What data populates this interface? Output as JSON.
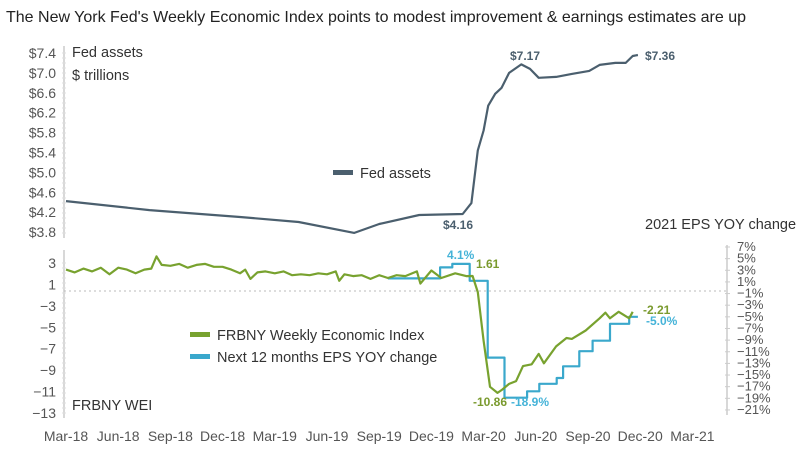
{
  "chart_data": [
    {
      "type": "line",
      "title": "The New York Fed's Weekly Economic Index points to modest improvement & earnings estimates are up",
      "ylabel": "Fed assets",
      "yunits": "$ trillions",
      "ylim": [
        3.8,
        7.4
      ],
      "yticks": [
        "$7.4",
        "$7.0",
        "$6.6",
        "$6.2",
        "$5.8",
        "$5.4",
        "$5.0",
        "$4.6",
        "$4.2",
        "$3.8"
      ],
      "legend": "center",
      "series": [
        {
          "name": "Fed assets",
          "color": "#4b5f6e",
          "points": [
            [
              "2018-03-01",
              4.42
            ],
            [
              "2018-07-25",
              4.24
            ],
            [
              "2019-01-01",
              4.1
            ],
            [
              "2019-04-12",
              4.0
            ],
            [
              "2019-07-18",
              3.78
            ],
            [
              "2019-09-01",
              3.96
            ],
            [
              "2019-11-10",
              4.14
            ],
            [
              "2020-01-25",
              4.16
            ],
            [
              "2020-02-10",
              4.38
            ],
            [
              "2020-02-21",
              5.44
            ],
            [
              "2020-03-01",
              5.84
            ],
            [
              "2020-03-09",
              6.34
            ],
            [
              "2020-03-21",
              6.58
            ],
            [
              "2020-04-02",
              6.7
            ],
            [
              "2020-04-15",
              7.0
            ],
            [
              "2020-05-06",
              7.17
            ],
            [
              "2020-05-21",
              7.08
            ],
            [
              "2020-06-06",
              6.9
            ],
            [
              "2020-07-06",
              6.92
            ],
            [
              "2020-08-03",
              6.98
            ],
            [
              "2020-09-03",
              7.04
            ],
            [
              "2020-09-21",
              7.16
            ],
            [
              "2020-10-18",
              7.2
            ],
            [
              "2020-11-06",
              7.2
            ],
            [
              "2020-11-18",
              7.34
            ],
            [
              "2020-11-27",
              7.36
            ]
          ]
        }
      ],
      "annotations": [
        {
          "text": "$4.16",
          "series": "Fed assets"
        },
        {
          "text": "$7.17",
          "series": "Fed assets"
        },
        {
          "text": "$7.36",
          "series": "Fed assets"
        }
      ]
    },
    {
      "type": "line",
      "ylabel_left": "FRBNY WEI",
      "ylabel_right": "2021 EPS YOY change",
      "ylim_left": [
        -13,
        3
      ],
      "ylim_right": [
        -21,
        7
      ],
      "yticks_left": [
        "3",
        "1",
        "−3",
        "−5",
        "−7",
        "−9",
        "−11",
        "−13"
      ],
      "yticks_right": [
        "7%",
        "5%",
        "3%",
        "1%",
        "−1%",
        "−3%",
        "−5%",
        "−7%",
        "−9%",
        "−11%",
        "−13%",
        "−15%",
        "−17%",
        "−19%",
        "−21%"
      ],
      "xticks": [
        "Mar-18",
        "Jun-18",
        "Sep-18",
        "Dec-18",
        "Mar-19",
        "Jun-19",
        "Sep-19",
        "Dec-19",
        "Mar-20",
        "Jun-20",
        "Sep-20",
        "Dec-20",
        "Mar-21"
      ],
      "zero_line": "dotted",
      "legend": "center-left",
      "series": [
        {
          "name": "FRBNY Weekly Economic Index",
          "axis": "left",
          "color": "#78a22f",
          "points": [
            [
              "2018-03-01",
              2.3
            ],
            [
              "2018-03-16",
              2.0
            ],
            [
              "2018-04-01",
              2.4
            ],
            [
              "2018-04-16",
              2.1
            ],
            [
              "2018-05-01",
              2.5
            ],
            [
              "2018-05-16",
              1.8
            ],
            [
              "2018-06-01",
              2.5
            ],
            [
              "2018-06-16",
              2.3
            ],
            [
              "2018-07-01",
              1.9
            ],
            [
              "2018-07-16",
              2.3
            ],
            [
              "2018-07-28",
              2.4
            ],
            [
              "2018-08-07",
              3.7
            ],
            [
              "2018-08-16",
              2.8
            ],
            [
              "2018-09-01",
              2.7
            ],
            [
              "2018-09-16",
              2.9
            ],
            [
              "2018-10-01",
              2.5
            ],
            [
              "2018-10-16",
              2.8
            ],
            [
              "2018-11-01",
              2.9
            ],
            [
              "2018-11-16",
              2.6
            ],
            [
              "2018-12-01",
              2.6
            ],
            [
              "2018-12-16",
              2.3
            ],
            [
              "2019-01-01",
              1.9
            ],
            [
              "2019-01-10",
              2.3
            ],
            [
              "2019-01-19",
              1.3
            ],
            [
              "2019-02-01",
              2.0
            ],
            [
              "2019-02-15",
              2.1
            ],
            [
              "2019-03-01",
              1.9
            ],
            [
              "2019-03-16",
              2.1
            ],
            [
              "2019-04-01",
              1.7
            ],
            [
              "2019-04-16",
              1.8
            ],
            [
              "2019-05-01",
              1.7
            ],
            [
              "2019-05-16",
              1.9
            ],
            [
              "2019-06-01",
              1.8
            ],
            [
              "2019-06-16",
              2.1
            ],
            [
              "2019-06-22",
              1.1
            ],
            [
              "2019-07-01",
              1.8
            ],
            [
              "2019-07-16",
              1.6
            ],
            [
              "2019-08-01",
              1.7
            ],
            [
              "2019-08-16",
              1.3
            ],
            [
              "2019-09-01",
              1.7
            ],
            [
              "2019-09-16",
              1.4
            ],
            [
              "2019-10-01",
              1.7
            ],
            [
              "2019-10-16",
              1.6
            ],
            [
              "2019-11-06",
              2.1
            ],
            [
              "2019-11-12",
              0.8
            ],
            [
              "2019-12-01",
              2.2
            ],
            [
              "2019-12-18",
              1.4
            ],
            [
              "2020-01-12",
              1.9
            ],
            [
              "2020-02-01",
              1.6
            ],
            [
              "2020-02-12",
              1.61
            ],
            [
              "2020-02-21",
              -0.1
            ],
            [
              "2020-03-01",
              -5.3
            ],
            [
              "2020-03-12",
              -10.2
            ],
            [
              "2020-03-25",
              -10.86
            ],
            [
              "2020-04-03",
              -10.5
            ],
            [
              "2020-04-15",
              -9.9
            ],
            [
              "2020-04-27",
              -9.6
            ],
            [
              "2020-05-09",
              -8.0
            ],
            [
              "2020-05-24",
              -7.8
            ],
            [
              "2020-06-06",
              -6.7
            ],
            [
              "2020-06-15",
              -7.7
            ],
            [
              "2020-07-06",
              -5.9
            ],
            [
              "2020-07-24",
              -5.0
            ],
            [
              "2020-08-03",
              -5.1
            ],
            [
              "2020-08-27",
              -4.2
            ],
            [
              "2020-09-21",
              -2.9
            ],
            [
              "2020-10-01",
              -2.3
            ],
            [
              "2020-10-09",
              -2.9
            ],
            [
              "2020-10-24",
              -2.2
            ],
            [
              "2020-11-12",
              -2.9
            ],
            [
              "2020-11-18",
              -2.21
            ]
          ]
        },
        {
          "name": "Next 12 months EPS YOY change",
          "axis": "right",
          "color": "#3aa8cc",
          "step": true,
          "points": [
            [
              "2019-09-16",
              1.6
            ],
            [
              "2019-12-16",
              3.5
            ],
            [
              "2020-01-07",
              4.1
            ],
            [
              "2020-02-07",
              1.2
            ],
            [
              "2020-03-08",
              -12.0
            ],
            [
              "2020-04-07",
              -18.9
            ],
            [
              "2020-05-16",
              -17.8
            ],
            [
              "2020-06-07",
              -16.5
            ],
            [
              "2020-07-07",
              -15.5
            ],
            [
              "2020-07-18",
              -13.5
            ],
            [
              "2020-08-16",
              -10.9
            ],
            [
              "2020-09-09",
              -9.1
            ],
            [
              "2020-10-09",
              -6.2
            ],
            [
              "2020-11-12",
              -5.0
            ],
            [
              "2020-11-27",
              -5.0
            ]
          ]
        }
      ],
      "annotations": [
        {
          "text": "4.1%",
          "series": "Next 12 months EPS YOY change"
        },
        {
          "text": "1.61",
          "series": "FRBNY Weekly Economic Index"
        },
        {
          "text": "-10.86",
          "series": "FRBNY Weekly Economic Index"
        },
        {
          "text": "-18.9%",
          "series": "Next 12 months EPS YOY change"
        },
        {
          "text": "-2.21",
          "series": "FRBNY Weekly Economic Index"
        },
        {
          "text": "-5.0%",
          "series": "Next 12 months EPS YOY change"
        }
      ]
    }
  ]
}
